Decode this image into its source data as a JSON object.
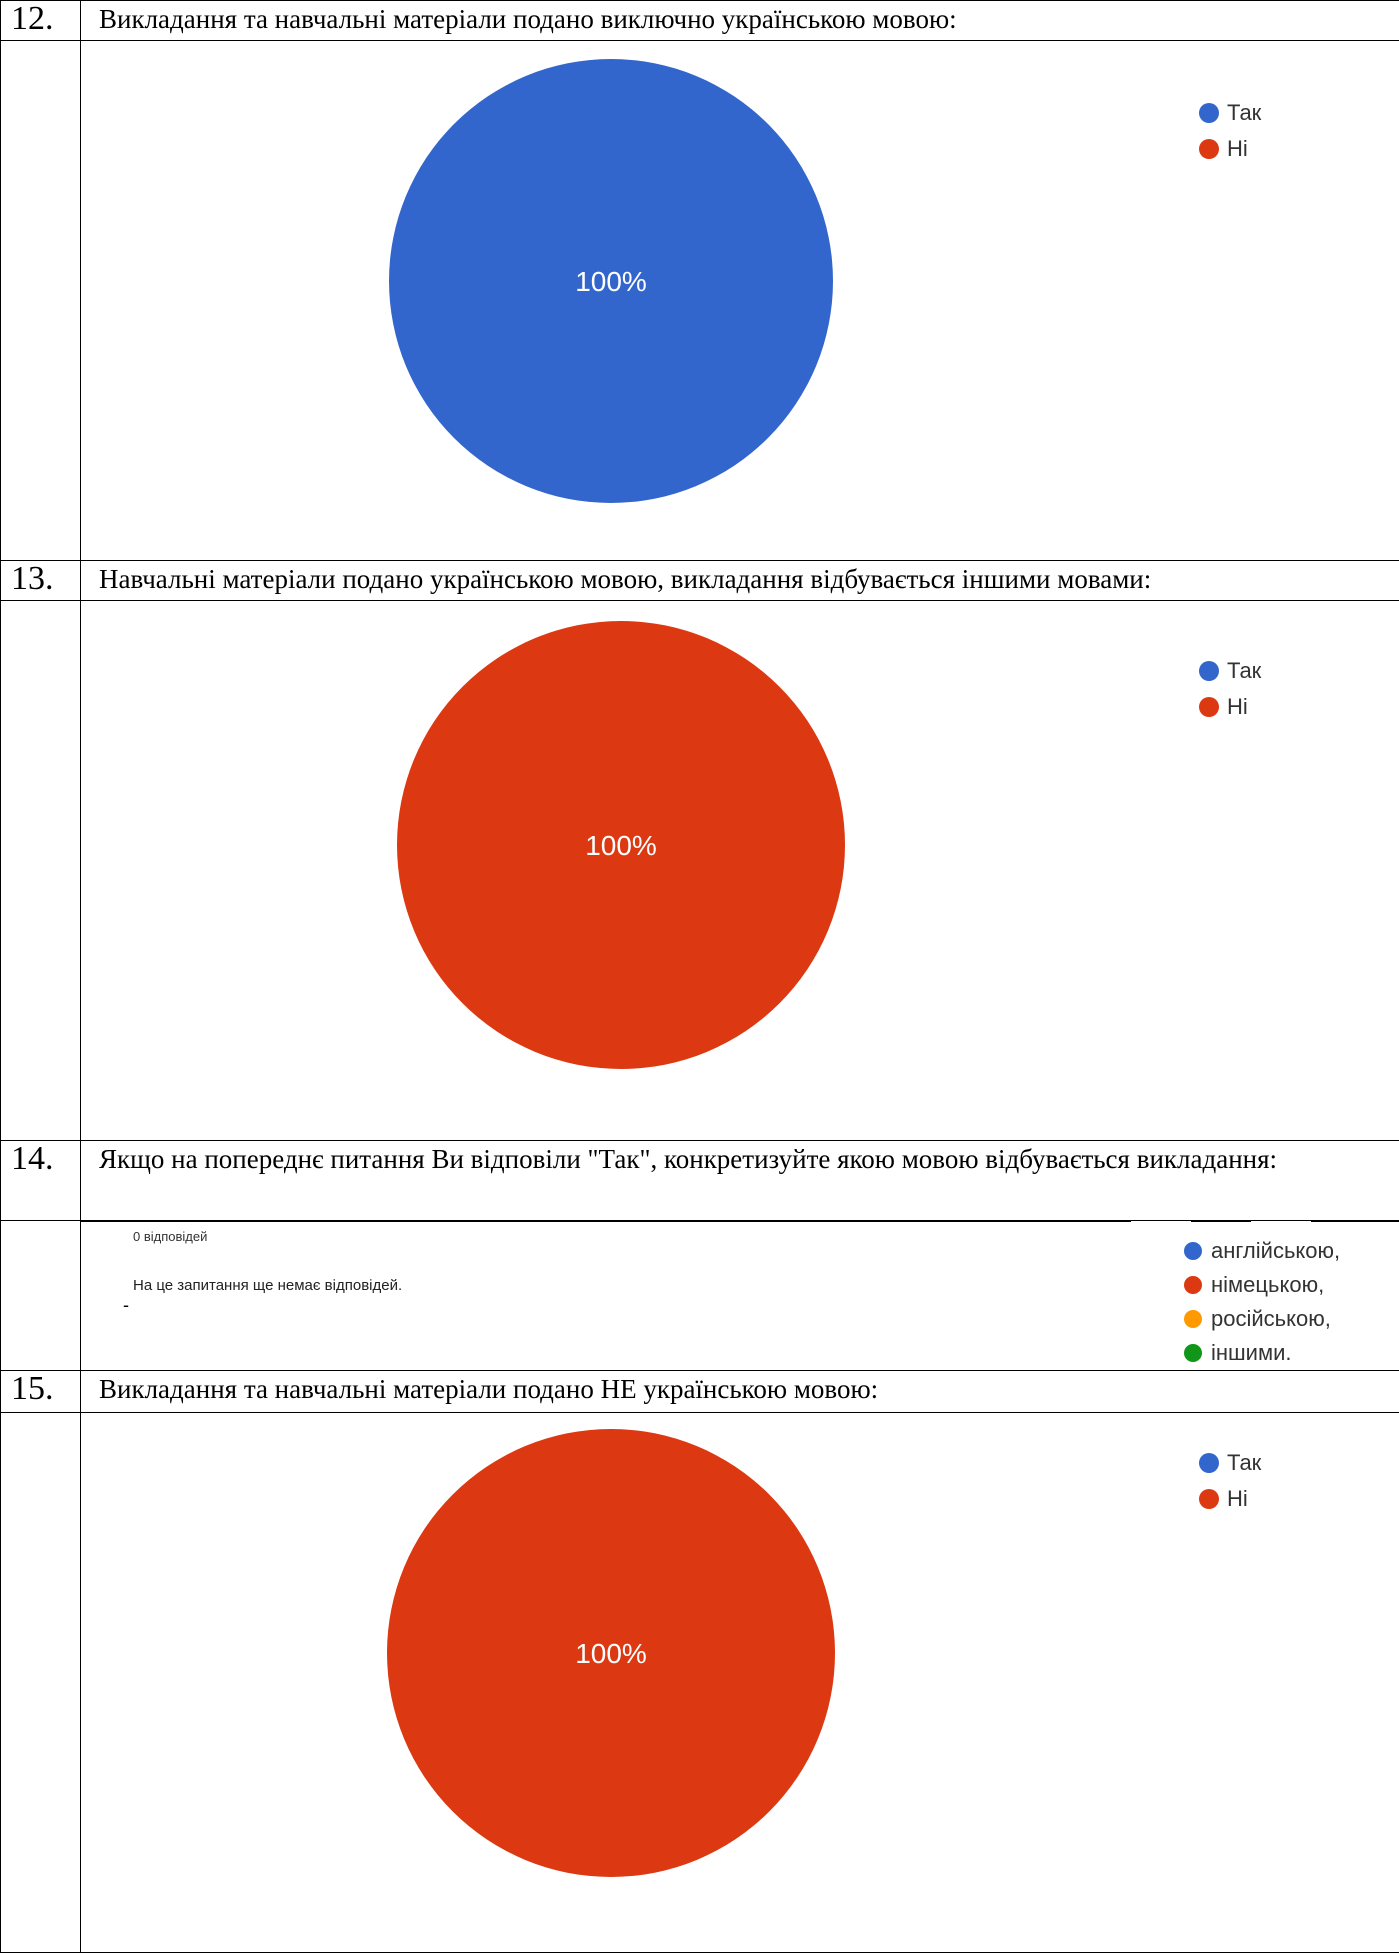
{
  "sections": [
    {
      "number": "12.",
      "question": "Викладання та навчальні матеріали подано виключно українською мовою:",
      "chart_index": 0
    },
    {
      "number": "13.",
      "question": "Навчальні матеріали подано українською мовою, викладання відбувається іншими мовами:",
      "chart_index": 1
    },
    {
      "number": "14.",
      "question": "Якщо на попереднє питання Ви відповіли \"Так\", конкретизуйте якою мовою відбувається викладання:",
      "responses_count": "0 відповідей",
      "empty_message": "На це запитання ще немає відповідей.",
      "dash": "-",
      "chart_index": 2
    },
    {
      "number": "15.",
      "question": "Викладання та навчальні матеріали подано НЕ українською мовою:",
      "chart_index": 3
    }
  ],
  "colors": {
    "blue": "#3366cc",
    "red": "#dc3912",
    "orange": "#ff9900",
    "green": "#109618"
  },
  "chart_data": [
    {
      "type": "pie",
      "legend_position": "top-right",
      "categories": [
        "Так",
        "Ні"
      ],
      "values": [
        100,
        0
      ],
      "slice_labels": [
        "100%",
        ""
      ],
      "colors": [
        "#3366cc",
        "#dc3912"
      ]
    },
    {
      "type": "pie",
      "legend_position": "top-right",
      "categories": [
        "Так",
        "Ні"
      ],
      "values": [
        0,
        100
      ],
      "slice_labels": [
        "",
        "100%"
      ],
      "colors": [
        "#3366cc",
        "#dc3912"
      ]
    },
    {
      "type": "pie",
      "legend_position": "top-right",
      "categories": [
        "англійською,",
        "німецькою,",
        "російською,",
        "іншими."
      ],
      "values": [
        0,
        0,
        0,
        0
      ],
      "slice_labels": [
        "",
        "",
        "",
        ""
      ],
      "colors": [
        "#3366cc",
        "#dc3912",
        "#ff9900",
        "#109618"
      ]
    },
    {
      "type": "pie",
      "legend_position": "top-right",
      "categories": [
        "Так",
        "Ні"
      ],
      "values": [
        0,
        100
      ],
      "slice_labels": [
        "",
        "100%"
      ],
      "colors": [
        "#3366cc",
        "#dc3912"
      ]
    }
  ]
}
